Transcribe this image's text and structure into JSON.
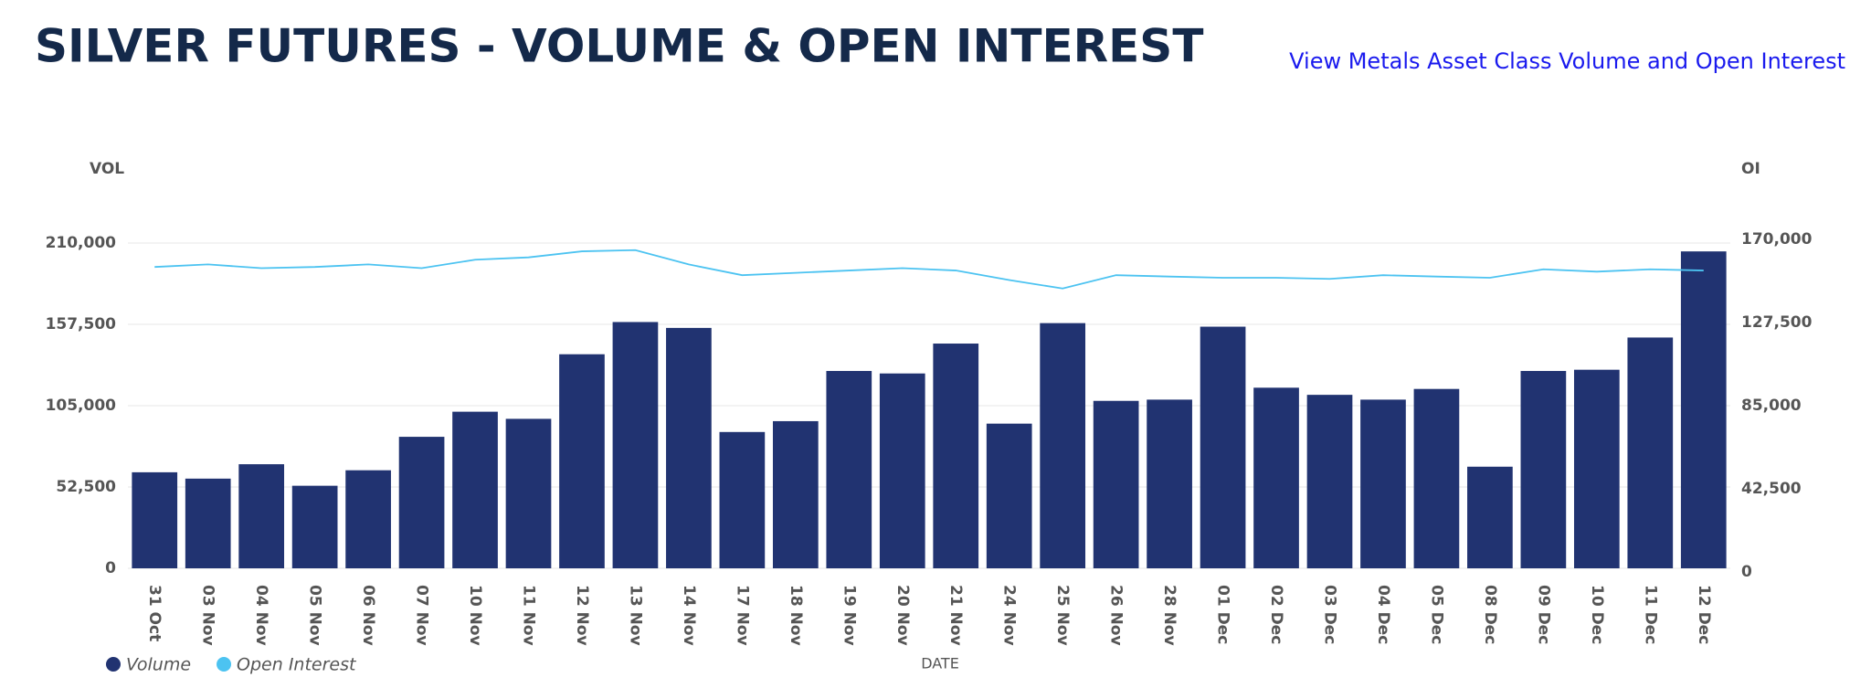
{
  "header": {
    "link": "View Metals Asset Class Volume and Open Interest"
  },
  "chart_data": {
    "type": "bar_line",
    "title": "SILVER FUTURES - VOLUME & OPEN INTEREST",
    "y_label": "VOL",
    "y2_label": "OI",
    "x_label": "DATE",
    "categories": [
      "31 Oct",
      "03 Nov",
      "04 Nov",
      "05 Nov",
      "06 Nov",
      "07 Nov",
      "10 Nov",
      "11 Nov",
      "12 Nov",
      "13 Nov",
      "14 Nov",
      "17 Nov",
      "18 Nov",
      "19 Nov",
      "20 Nov",
      "21 Nov",
      "24 Nov",
      "25 Nov",
      "26 Nov",
      "28 Nov",
      "01 Dec",
      "02 Dec",
      "03 Dec",
      "04 Dec",
      "05 Dec",
      "08 Dec",
      "09 Dec",
      "10 Dec",
      "11 Dec",
      "12 Dec"
    ],
    "series": [
      {
        "name": "Volume",
        "color": "#213371",
        "kind": "bar",
        "values": [
          62000,
          57900,
          67200,
          53300,
          63300,
          84900,
          101100,
          96500,
          138200,
          159000,
          155200,
          88000,
          95000,
          127400,
          125800,
          145100,
          93400,
          158300,
          108100,
          108900,
          156000,
          116600,
          112000,
          108900,
          115800,
          65600,
          127400,
          128200,
          149000,
          204600
        ]
      },
      {
        "name": "Open Interest",
        "color": "#4cc3f1",
        "kind": "line",
        "axis": "y2",
        "values": [
          155900,
          157200,
          155300,
          155900,
          157200,
          155300,
          159600,
          160800,
          163900,
          164500,
          157200,
          151700,
          152900,
          154100,
          155300,
          154100,
          149200,
          144900,
          151700,
          151000,
          150400,
          150400,
          149800,
          151700,
          151000,
          150400,
          154700,
          153500,
          154700,
          154100
        ]
      }
    ],
    "ylim": [
      0,
      210000
    ],
    "yticks": [
      0,
      {
        "value": 52500,
        "label": "52,500"
      },
      {
        "value": 105000,
        "label": "105,000"
      },
      {
        "value": 157500,
        "label": "157,500"
      },
      {
        "value": 210000,
        "label": "210,000"
      }
    ],
    "y2lim": [
      0,
      170000
    ],
    "y2ticks": [
      0,
      {
        "value": 42500,
        "label": "42,500"
      },
      {
        "value": 85000,
        "label": "85,000"
      },
      {
        "value": 127500,
        "label": "127,500"
      },
      {
        "value": 170000,
        "label": "170,000"
      }
    ],
    "grid": true
  }
}
